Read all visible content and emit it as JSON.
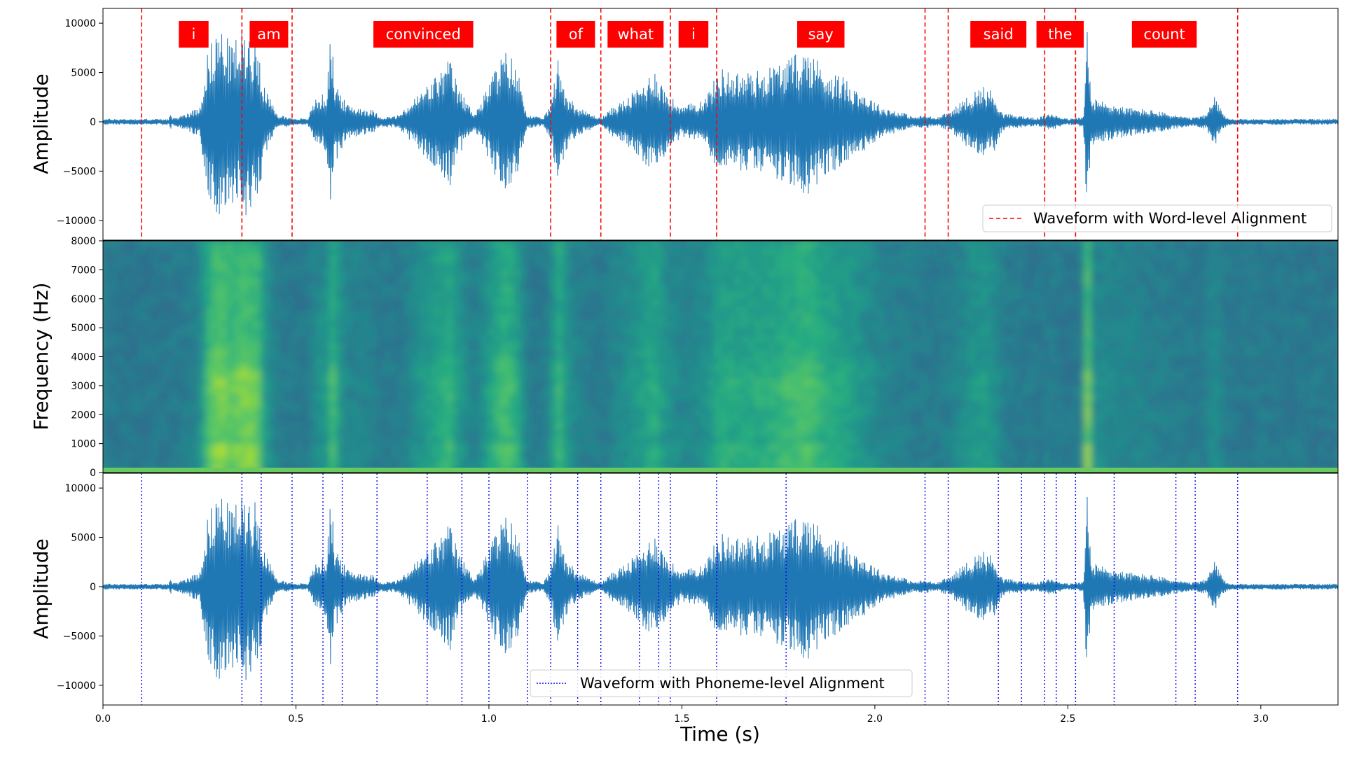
{
  "chart_data": [
    {
      "type": "line",
      "panel": "word-waveform",
      "ylabel": "Amplitude",
      "ylim": [
        -12000,
        11500
      ],
      "xlim": [
        0.0,
        3.2
      ],
      "yticks": [
        10000,
        5000,
        0,
        -5000,
        -10000
      ],
      "ytick_labels": [
        "10000",
        "5000",
        "0",
        "−5000",
        "−10000"
      ],
      "grid": false,
      "legend": {
        "position": "bottom-right",
        "label": "Waveform with Word-level Alignment",
        "style": "dashed",
        "color": "#ff0000"
      },
      "series_color": "#1f77b4",
      "boundaries": [
        0.1,
        0.36,
        0.49,
        1.16,
        1.29,
        1.47,
        1.59,
        2.13,
        2.19,
        2.44,
        2.52,
        2.94
      ],
      "words": [
        {
          "label": "i",
          "x": 0.235
        },
        {
          "label": "am",
          "x": 0.43
        },
        {
          "label": "convinced",
          "x": 0.83
        },
        {
          "label": "of",
          "x": 1.225
        },
        {
          "label": "what",
          "x": 1.38
        },
        {
          "label": "i",
          "x": 1.53
        },
        {
          "label": "say",
          "x": 1.86
        },
        {
          "label": "said",
          "x": 2.32
        },
        {
          "label": "the",
          "x": 2.48
        },
        {
          "label": "count",
          "x": 2.75
        }
      ],
      "word_box_color": "#ff0000",
      "envelope": [
        [
          0.0,
          300
        ],
        [
          0.17,
          300
        ],
        [
          0.175,
          900
        ],
        [
          0.18,
          300
        ],
        [
          0.25,
          1500
        ],
        [
          0.27,
          7000
        ],
        [
          0.3,
          10000
        ],
        [
          0.33,
          8000
        ],
        [
          0.37,
          9500
        ],
        [
          0.4,
          8500
        ],
        [
          0.42,
          3500
        ],
        [
          0.45,
          800
        ],
        [
          0.49,
          400
        ],
        [
          0.53,
          300
        ],
        [
          0.55,
          2500
        ],
        [
          0.58,
          3000
        ],
        [
          0.59,
          9700
        ],
        [
          0.6,
          4500
        ],
        [
          0.63,
          1800
        ],
        [
          0.7,
          1200
        ],
        [
          0.72,
          500
        ],
        [
          0.76,
          600
        ],
        [
          0.78,
          1200
        ],
        [
          0.82,
          3000
        ],
        [
          0.87,
          5000
        ],
        [
          0.9,
          6500
        ],
        [
          0.92,
          3500
        ],
        [
          0.96,
          1000
        ],
        [
          0.98,
          2000
        ],
        [
          1.02,
          6000
        ],
        [
          1.05,
          7500
        ],
        [
          1.08,
          4500
        ],
        [
          1.1,
          700
        ],
        [
          1.14,
          400
        ],
        [
          1.16,
          1800
        ],
        [
          1.18,
          6800
        ],
        [
          1.2,
          3000
        ],
        [
          1.23,
          1500
        ],
        [
          1.27,
          700
        ],
        [
          1.29,
          400
        ],
        [
          1.32,
          1500
        ],
        [
          1.36,
          2500
        ],
        [
          1.4,
          4000
        ],
        [
          1.43,
          5500
        ],
        [
          1.46,
          3000
        ],
        [
          1.5,
          1500
        ],
        [
          1.56,
          2500
        ],
        [
          1.6,
          5500
        ],
        [
          1.65,
          5000
        ],
        [
          1.7,
          5300
        ],
        [
          1.75,
          6000
        ],
        [
          1.8,
          7000
        ],
        [
          1.83,
          7500
        ],
        [
          1.87,
          5500
        ],
        [
          1.92,
          4500
        ],
        [
          1.97,
          3000
        ],
        [
          2.02,
          1500
        ],
        [
          2.07,
          1000
        ],
        [
          2.1,
          500
        ],
        [
          2.13,
          700
        ],
        [
          2.16,
          400
        ],
        [
          2.2,
          1200
        ],
        [
          2.25,
          3000
        ],
        [
          2.28,
          3700
        ],
        [
          2.31,
          3000
        ],
        [
          2.33,
          900
        ],
        [
          2.38,
          600
        ],
        [
          2.42,
          400
        ],
        [
          2.46,
          900
        ],
        [
          2.5,
          300
        ],
        [
          2.54,
          500
        ],
        [
          2.55,
          10000
        ],
        [
          2.56,
          2500
        ],
        [
          2.6,
          2000
        ],
        [
          2.65,
          1500
        ],
        [
          2.72,
          1200
        ],
        [
          2.78,
          700
        ],
        [
          2.82,
          400
        ],
        [
          2.86,
          800
        ],
        [
          2.88,
          2700
        ],
        [
          2.9,
          900
        ],
        [
          2.92,
          300
        ],
        [
          3.05,
          300
        ],
        [
          3.2,
          300
        ]
      ]
    },
    {
      "type": "heatmap",
      "panel": "spectrogram",
      "ylabel": "Frequency (Hz)",
      "ylim": [
        0,
        8000
      ],
      "xlim": [
        0.0,
        3.2
      ],
      "yticks": [
        0,
        1000,
        2000,
        3000,
        4000,
        5000,
        6000,
        7000,
        8000
      ],
      "ytick_labels": [
        "0",
        "1000",
        "2000",
        "3000",
        "4000",
        "5000",
        "6000",
        "7000",
        "8000"
      ],
      "colormap": "viridis"
    },
    {
      "type": "line",
      "panel": "phoneme-waveform",
      "ylabel": "Amplitude",
      "xlabel": "Time (s)",
      "ylim": [
        -12000,
        11500
      ],
      "xlim": [
        0.0,
        3.2
      ],
      "xticks": [
        0.0,
        0.5,
        1.0,
        1.5,
        2.0,
        2.5,
        3.0
      ],
      "xtick_labels": [
        "0.0",
        "0.5",
        "1.0",
        "1.5",
        "2.0",
        "2.5",
        "3.0"
      ],
      "yticks": [
        10000,
        5000,
        0,
        -5000,
        -10000
      ],
      "ytick_labels": [
        "10000",
        "5000",
        "0",
        "−5000",
        "−10000"
      ],
      "grid": false,
      "legend": {
        "position": "bottom-center",
        "label": "Waveform with Phoneme-level Alignment",
        "style": "dotted",
        "color": "#0000ff"
      },
      "series_color": "#1f77b4",
      "boundaries": [
        0.1,
        0.36,
        0.41,
        0.49,
        0.57,
        0.62,
        0.71,
        0.84,
        0.93,
        1.0,
        1.1,
        1.16,
        1.23,
        1.29,
        1.39,
        1.44,
        1.47,
        1.59,
        1.77,
        2.13,
        2.19,
        2.32,
        2.38,
        2.44,
        2.47,
        2.52,
        2.62,
        2.78,
        2.83,
        2.94
      ]
    }
  ]
}
